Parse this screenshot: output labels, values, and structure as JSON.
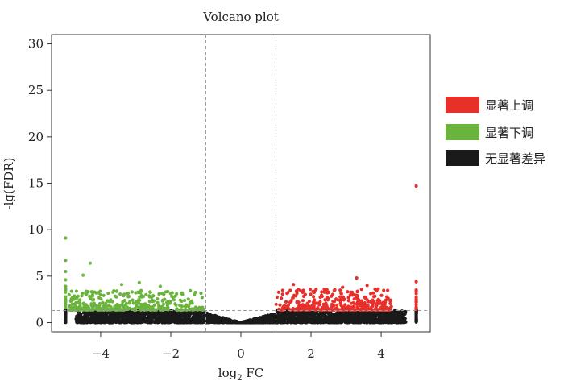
{
  "chart_data": {
    "type": "scatter",
    "title": "Volcano plot",
    "xlabel": {
      "base": "log",
      "sub": "2",
      "rest": " FC"
    },
    "ylabel": "-lg(FDR)",
    "xlim": [
      -5.4,
      5.4
    ],
    "ylim": [
      -1,
      31
    ],
    "x_ticks": [
      -4,
      -2,
      0,
      2,
      4
    ],
    "x_tick_labels": [
      "−4",
      "−2",
      "0",
      "2",
      "4"
    ],
    "y_ticks": [
      0,
      5,
      10,
      15,
      20,
      25,
      30
    ],
    "y_tick_labels": [
      "0",
      "5",
      "10",
      "15",
      "20",
      "25",
      "30"
    ],
    "fc_thresholds": [
      -1,
      1
    ],
    "fdr_threshold": 1.3,
    "legend": [
      {
        "label": "显著上调",
        "color": "#e8302a"
      },
      {
        "label": "显著下调",
        "color": "#6ab43e"
      },
      {
        "label": "无显著差异",
        "color": "#1a1a1a"
      }
    ],
    "series": [
      {
        "name": "显著上调",
        "color": "#e8302a",
        "highlights": [
          [
            5.0,
            14.7
          ],
          [
            3.3,
            4.8
          ],
          [
            1.5,
            4.1
          ],
          [
            3.6,
            4.0
          ],
          [
            4.2,
            2.6
          ],
          [
            2.9,
            3.8
          ],
          [
            5.0,
            4.4
          ],
          [
            5.0,
            3.5
          ]
        ]
      },
      {
        "name": "显著下调",
        "color": "#6ab43e",
        "highlights": [
          [
            -5.0,
            9.1
          ],
          [
            -5.0,
            6.7
          ],
          [
            -5.0,
            5.5
          ],
          [
            -5.0,
            4.6
          ],
          [
            -4.3,
            6.4
          ],
          [
            -4.5,
            5.1
          ],
          [
            -4.9,
            3.0
          ],
          [
            -3.4,
            4.1
          ],
          [
            -2.9,
            4.3
          ],
          [
            -2.3,
            3.9
          ],
          [
            -3.0,
            3.2
          ]
        ]
      },
      {
        "name": "无显著差异",
        "color": "#1a1a1a",
        "highlights": []
      }
    ]
  }
}
